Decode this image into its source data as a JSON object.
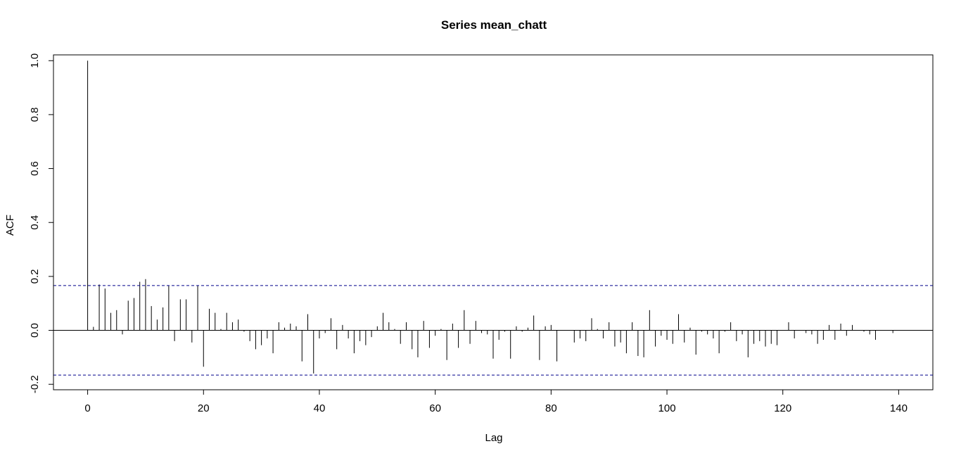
{
  "chart_data": {
    "type": "bar",
    "title": "Series  mean_chatt",
    "xlabel": "Lag",
    "ylabel": "ACF",
    "xlim": [
      -5.9,
      145.9
    ],
    "ylim": [
      -0.2203,
      1.0215
    ],
    "xticks": [
      0,
      20,
      40,
      60,
      80,
      100,
      120,
      140
    ],
    "yticks": [
      -0.2,
      0.0,
      0.2,
      0.4,
      0.6,
      0.8,
      1.0
    ],
    "ytick_labels": [
      "-0.2",
      "0.0",
      "0.2",
      "0.4",
      "0.6",
      "0.8",
      "1.0"
    ],
    "confidence_bound": 0.166,
    "zero_line": true,
    "grid": false,
    "colors": {
      "bars": "#000000",
      "confidence": "#00008b",
      "frame": "#000000"
    },
    "lags": [
      0,
      1,
      2,
      3,
      4,
      5,
      6,
      7,
      8,
      9,
      10,
      11,
      12,
      13,
      14,
      15,
      16,
      17,
      18,
      19,
      20,
      21,
      22,
      23,
      24,
      25,
      26,
      27,
      28,
      29,
      30,
      31,
      32,
      33,
      34,
      35,
      36,
      37,
      38,
      39,
      40,
      41,
      42,
      43,
      44,
      45,
      46,
      47,
      48,
      49,
      50,
      51,
      52,
      53,
      54,
      55,
      56,
      57,
      58,
      59,
      60,
      61,
      62,
      63,
      64,
      65,
      66,
      67,
      68,
      69,
      70,
      71,
      72,
      73,
      74,
      75,
      76,
      77,
      78,
      79,
      80,
      81,
      82,
      83,
      84,
      85,
      86,
      87,
      88,
      89,
      90,
      91,
      92,
      93,
      94,
      95,
      96,
      97,
      98,
      99,
      100,
      101,
      102,
      103,
      104,
      105,
      106,
      107,
      108,
      109,
      110,
      111,
      112,
      113,
      114,
      115,
      116,
      117,
      118,
      119,
      120,
      121,
      122,
      123,
      124,
      125,
      126,
      127,
      128,
      129,
      130,
      131,
      132,
      133,
      134,
      135,
      136,
      137,
      138,
      139
    ],
    "acf": [
      1.0,
      0.013,
      0.17,
      0.155,
      0.065,
      0.075,
      -0.015,
      0.11,
      0.12,
      0.18,
      0.19,
      0.09,
      0.04,
      0.085,
      0.165,
      -0.04,
      0.115,
      0.115,
      -0.045,
      0.165,
      -0.135,
      0.08,
      0.065,
      0.005,
      0.065,
      0.03,
      0.04,
      -0.005,
      -0.04,
      -0.07,
      -0.055,
      -0.03,
      -0.085,
      0.03,
      0.01,
      0.025,
      0.015,
      -0.115,
      0.06,
      -0.16,
      -0.03,
      -0.01,
      0.045,
      -0.07,
      0.02,
      -0.03,
      -0.085,
      -0.04,
      -0.055,
      -0.025,
      0.015,
      0.065,
      0.03,
      0.005,
      -0.05,
      0.03,
      -0.07,
      -0.1,
      0.035,
      -0.065,
      -0.02,
      0.005,
      -0.11,
      0.025,
      -0.065,
      0.075,
      -0.05,
      0.035,
      -0.01,
      -0.015,
      -0.105,
      -0.035,
      -0.005,
      -0.105,
      0.015,
      -0.005,
      0.01,
      0.055,
      -0.11,
      0.015,
      0.02,
      -0.115,
      0.0,
      0.0,
      -0.045,
      -0.03,
      -0.04,
      0.045,
      0.005,
      -0.03,
      0.03,
      -0.06,
      -0.045,
      -0.085,
      0.03,
      -0.095,
      -0.1,
      0.075,
      -0.06,
      -0.02,
      -0.035,
      -0.05,
      0.06,
      -0.045,
      0.01,
      -0.09,
      -0.005,
      -0.015,
      -0.03,
      -0.085,
      -0.005,
      0.03,
      -0.04,
      -0.015,
      -0.1,
      -0.05,
      -0.04,
      -0.06,
      -0.05,
      -0.055,
      0.0,
      0.03,
      -0.03,
      0.0,
      -0.01,
      -0.015,
      -0.05,
      -0.035,
      0.02,
      -0.035,
      0.025,
      -0.02,
      0.02,
      0.0,
      -0.005,
      -0.015,
      -0.035,
      0.0,
      0.0,
      -0.01
    ]
  }
}
